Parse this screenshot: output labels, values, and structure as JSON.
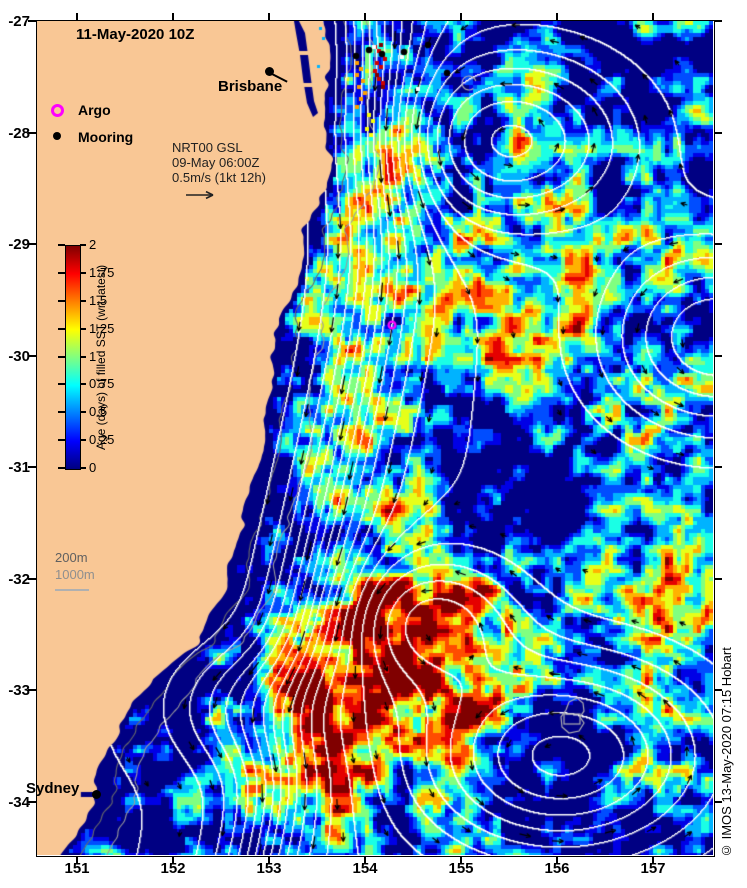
{
  "header": {
    "title": "11-May-2020 10Z"
  },
  "legend": {
    "argo_label": "Argo",
    "mooring_label": "Mooring"
  },
  "vector_key": {
    "line1": "NRT00 GSL",
    "line2": "09-May 06:00Z",
    "line3": "0.5m/s (1kt 12h)"
  },
  "colorbar": {
    "label": "Age (days) of filled SST (wrt latest)",
    "min": 0,
    "max": 2,
    "tick_labels": [
      "0",
      "0.25",
      "0.5",
      "0.75",
      "1",
      "1.25",
      "1.5",
      "1.75",
      "2"
    ]
  },
  "depth_legend": {
    "line1": "200m",
    "line2": "1000m"
  },
  "cities": {
    "brisbane": "Brisbane",
    "sydney": "Sydney"
  },
  "axes": {
    "x_tick_labels": [
      "151",
      "152",
      "153",
      "154",
      "155",
      "156",
      "157"
    ],
    "y_tick_labels": [
      "-27",
      "-28",
      "-29",
      "-30",
      "-31",
      "-32",
      "-33",
      "-34"
    ]
  },
  "credit": "© IMOS 13-May-2020 07:15 Hobart",
  "colors": {
    "land": "#f9c795",
    "ocean": "#000083",
    "gsl_contour": "#ffffff",
    "bathy_200": "#6a6a6a",
    "bathy_1000": "#9b9b9b",
    "island_outline": "#b0b0b0",
    "argo": "#ff00ff",
    "mooring": "#000000",
    "vector": "#000000"
  }
}
